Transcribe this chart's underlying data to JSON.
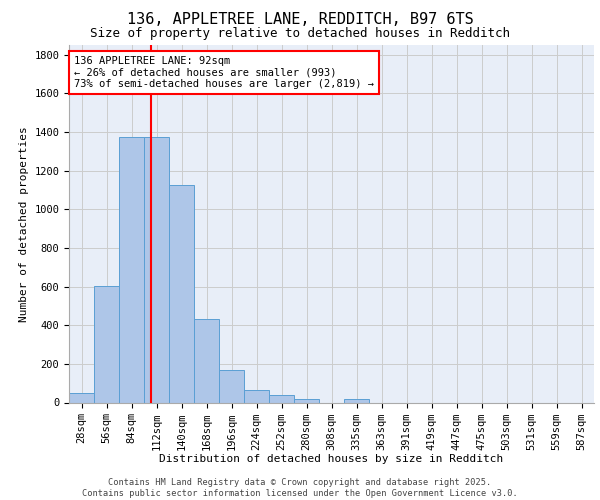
{
  "title_line1": "136, APPLETREE LANE, REDDITCH, B97 6TS",
  "title_line2": "Size of property relative to detached houses in Redditch",
  "xlabel": "Distribution of detached houses by size in Redditch",
  "ylabel": "Number of detached properties",
  "footer": "Contains HM Land Registry data © Crown copyright and database right 2025.\nContains public sector information licensed under the Open Government Licence v3.0.",
  "categories": [
    "28sqm",
    "56sqm",
    "84sqm",
    "112sqm",
    "140sqm",
    "168sqm",
    "196sqm",
    "224sqm",
    "252sqm",
    "280sqm",
    "308sqm",
    "335sqm",
    "363sqm",
    "391sqm",
    "419sqm",
    "447sqm",
    "475sqm",
    "503sqm",
    "531sqm",
    "559sqm",
    "587sqm"
  ],
  "values": [
    50,
    605,
    1375,
    1375,
    1125,
    430,
    170,
    65,
    40,
    18,
    0,
    18,
    0,
    0,
    0,
    0,
    0,
    0,
    0,
    0,
    0
  ],
  "bar_color": "#aec6e8",
  "bar_edge_color": "#5a9fd4",
  "grid_color": "#cccccc",
  "bg_color": "#e8eef8",
  "vline_color": "red",
  "annotation_text": "136 APPLETREE LANE: 92sqm\n← 26% of detached houses are smaller (993)\n73% of semi-detached houses are larger (2,819) →",
  "annotation_box_color": "red",
  "ylim": [
    0,
    1850
  ],
  "yticks": [
    0,
    200,
    400,
    600,
    800,
    1000,
    1200,
    1400,
    1600,
    1800
  ],
  "title1_fontsize": 11,
  "title2_fontsize": 9,
  "ylabel_fontsize": 8,
  "xlabel_fontsize": 8,
  "tick_fontsize": 7.5,
  "footer_fontsize": 6.2
}
